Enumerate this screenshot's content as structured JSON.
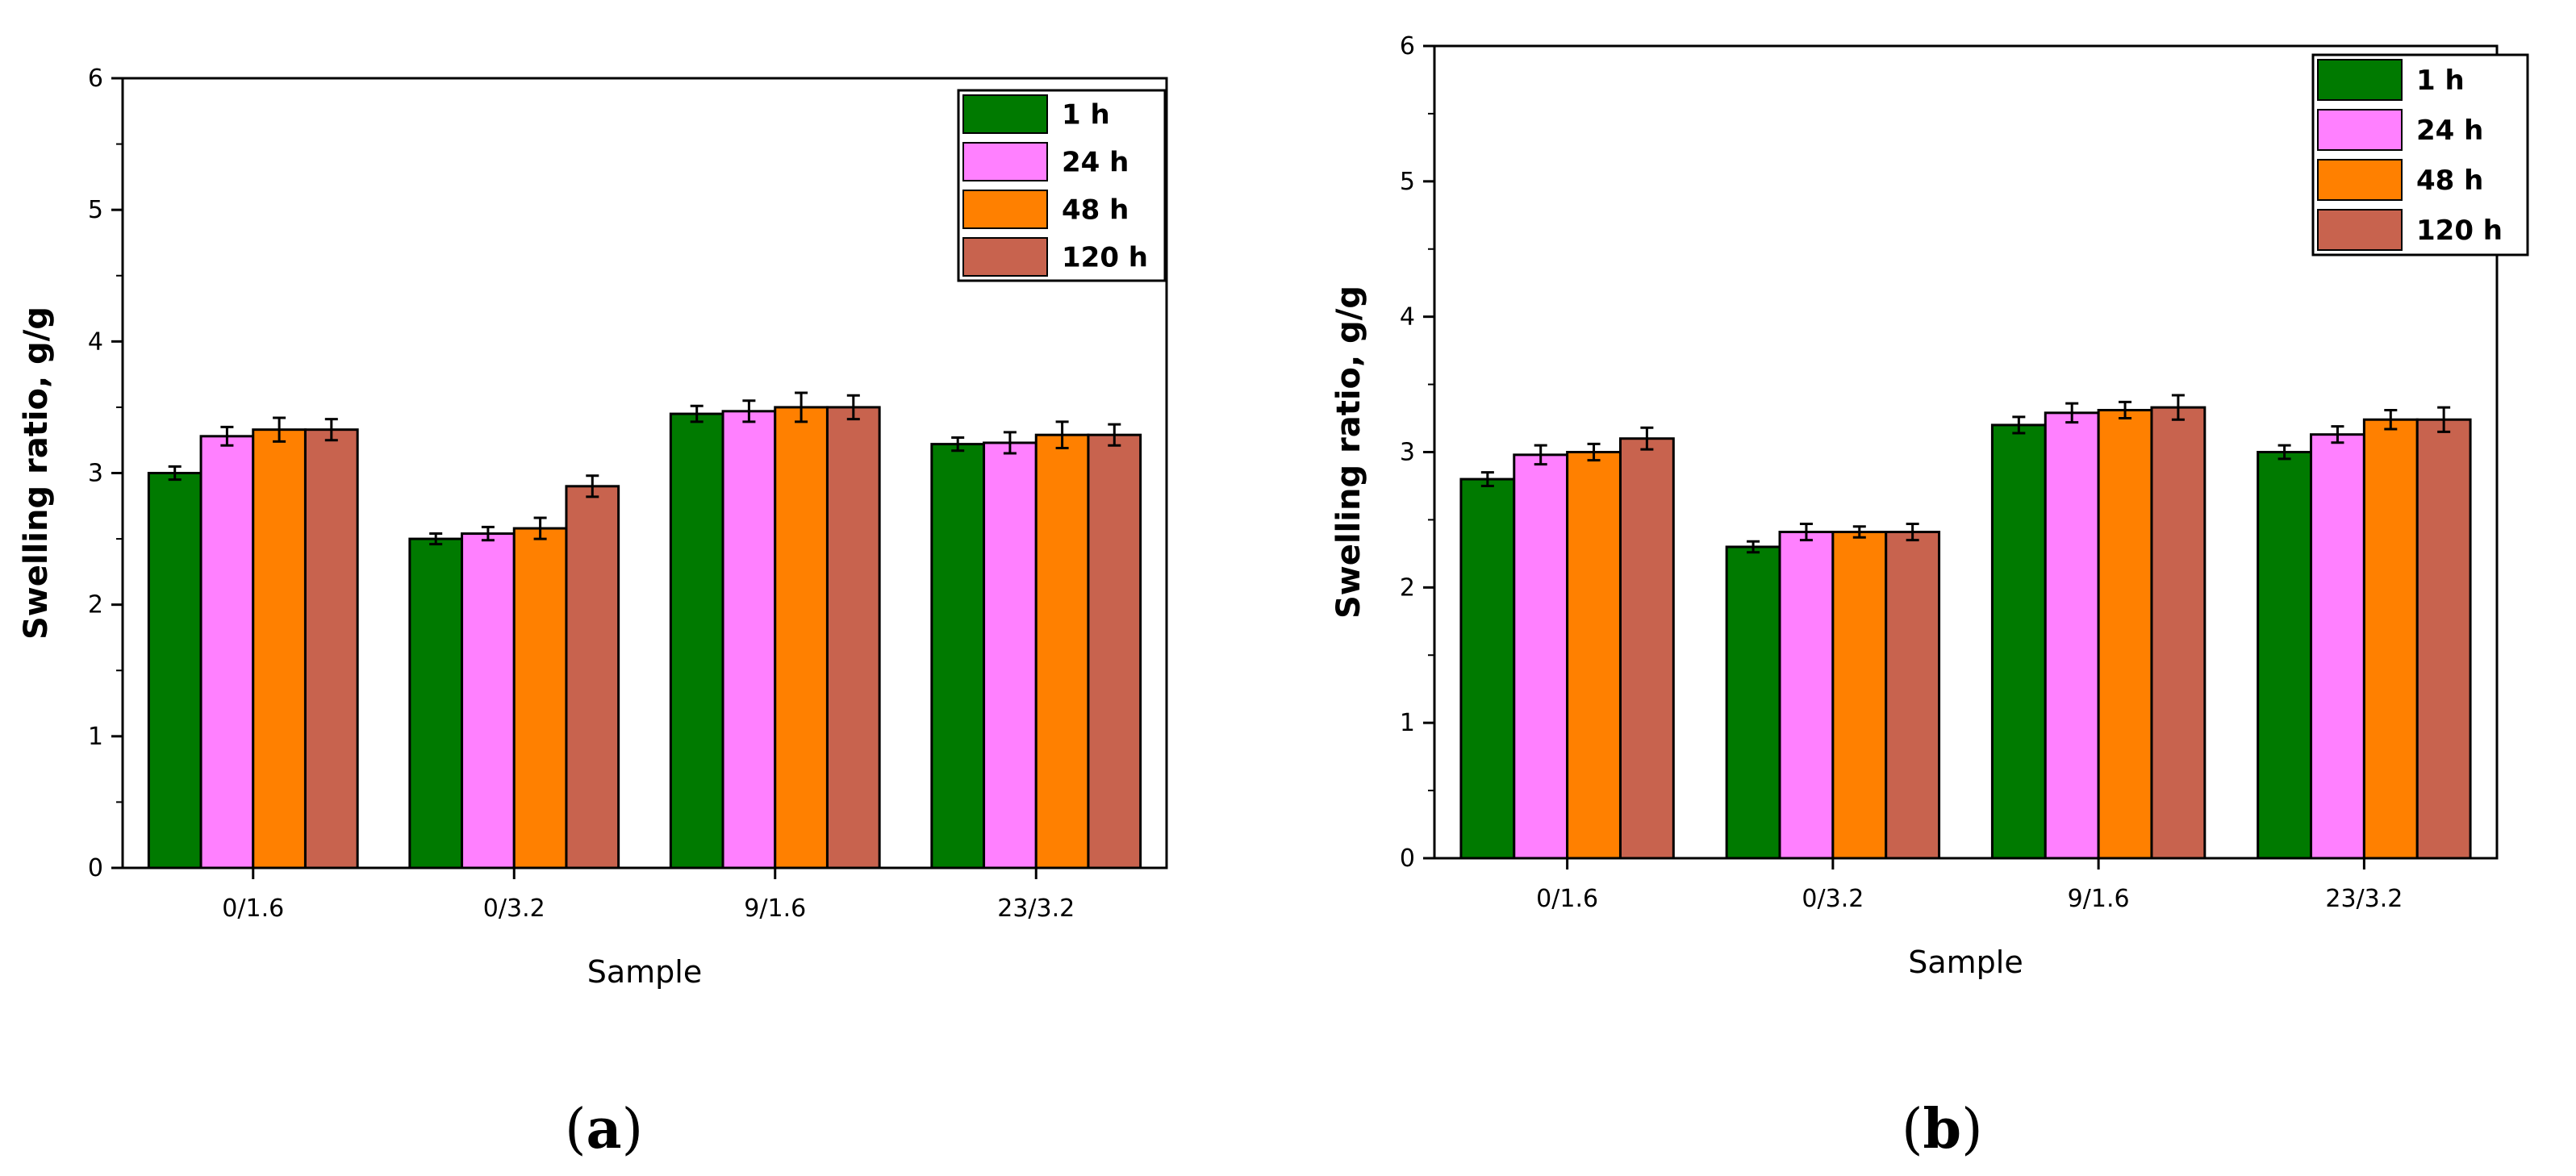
{
  "colors": {
    "1 h": "#007a00",
    "24 h": "#ff80ff",
    "48 h": "#ff8000",
    "120 h": "#c8634e"
  },
  "chart_data": [
    {
      "type": "bar",
      "panel_label": "a",
      "xlabel": "Sample",
      "ylabel": "Swelling ratio, g/g",
      "ylim": [
        0,
        6
      ],
      "yticks": [
        "0",
        "1",
        "2",
        "3",
        "4",
        "5",
        "6"
      ],
      "categories": [
        "0/1.6",
        "0/3.2",
        "9/1.6",
        "23/3.2"
      ],
      "legend_position": "top-right",
      "series": [
        {
          "name": "1 h",
          "values": [
            3.0,
            2.5,
            3.45,
            3.22
          ],
          "errors": [
            0.05,
            0.04,
            0.06,
            0.05
          ]
        },
        {
          "name": "24 h",
          "values": [
            3.28,
            2.54,
            3.47,
            3.23
          ],
          "errors": [
            0.07,
            0.05,
            0.08,
            0.08
          ]
        },
        {
          "name": "48 h",
          "values": [
            3.33,
            2.58,
            3.5,
            3.29
          ],
          "errors": [
            0.09,
            0.08,
            0.11,
            0.1
          ]
        },
        {
          "name": "120 h",
          "values": [
            3.33,
            2.9,
            3.5,
            3.29
          ],
          "errors": [
            0.08,
            0.08,
            0.09,
            0.08
          ]
        }
      ]
    },
    {
      "type": "bar",
      "panel_label": "b",
      "xlabel": "Sample",
      "ylabel": "Swelling ratio, g/g",
      "ylim": [
        0,
        6
      ],
      "yticks": [
        "0",
        "1",
        "2",
        "3",
        "4",
        "5",
        "6"
      ],
      "categories": [
        "0/1.6",
        "0/3.2",
        "9/1.6",
        "23/3.2"
      ],
      "legend_position": "top-right",
      "series": [
        {
          "name": "1 h",
          "values": [
            2.8,
            2.3,
            3.2,
            3.0
          ],
          "errors": [
            0.05,
            0.04,
            0.06,
            0.05
          ]
        },
        {
          "name": "24 h",
          "values": [
            2.98,
            2.41,
            3.29,
            3.13
          ],
          "errors": [
            0.07,
            0.06,
            0.07,
            0.06
          ]
        },
        {
          "name": "48 h",
          "values": [
            3.0,
            2.41,
            3.31,
            3.24
          ],
          "errors": [
            0.06,
            0.04,
            0.06,
            0.07
          ]
        },
        {
          "name": "120 h",
          "values": [
            3.1,
            2.41,
            3.33,
            3.24
          ],
          "errors": [
            0.08,
            0.06,
            0.09,
            0.09
          ]
        }
      ]
    }
  ]
}
